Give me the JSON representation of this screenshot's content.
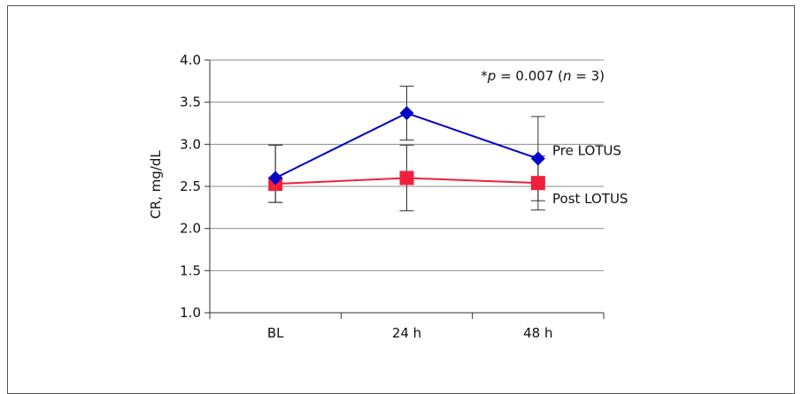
{
  "chart_data": {
    "type": "line",
    "categories": [
      "BL",
      "24 h",
      "48 h"
    ],
    "ylabel": "CR, mg/dL",
    "ylim": [
      1.0,
      4.0
    ],
    "yticks": [
      "1.0",
      "1.5",
      "2.0",
      "2.5",
      "3.0",
      "3.5",
      "4.0"
    ],
    "grid": true,
    "series": [
      {
        "name": "Pre LOTUS",
        "color": "#0000c8",
        "marker": "diamond",
        "values": [
          2.6,
          3.37,
          2.83
        ],
        "error_low": [
          2.31,
          3.05,
          2.33
        ],
        "error_high": [
          2.99,
          3.69,
          3.33
        ]
      },
      {
        "name": "Post LOTUS",
        "color": "#f0203c",
        "marker": "square",
        "values": [
          2.53,
          2.6,
          2.54
        ],
        "error_low": [
          2.31,
          2.21,
          2.22
        ],
        "error_high": [
          2.99,
          2.99,
          2.86
        ]
      }
    ],
    "annotation": {
      "star": "*",
      "p_symbol": "p",
      "p_text": " = 0.007 (",
      "n_symbol": "n",
      "n_text": " = 3)"
    }
  }
}
